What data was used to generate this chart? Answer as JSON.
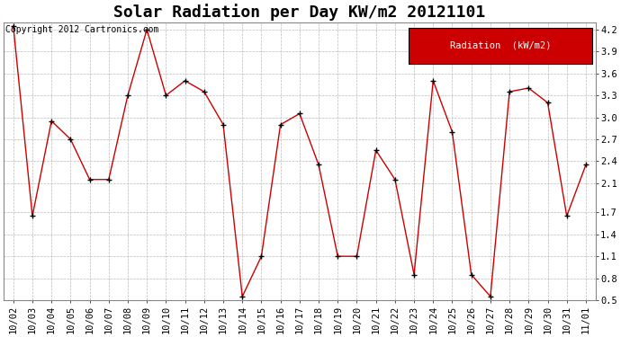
{
  "title": "Solar Radiation per Day KW/m2 20121101",
  "copyright_text": "Copyright 2012 Cartronics.com",
  "legend_label": "Radiation  (kW/m2)",
  "x_labels": [
    "10/02",
    "10/03",
    "10/04",
    "10/05",
    "10/06",
    "10/07",
    "10/08",
    "10/09",
    "10/10",
    "10/11",
    "10/12",
    "10/13",
    "10/14",
    "10/15",
    "10/16",
    "10/17",
    "10/18",
    "10/19",
    "10/20",
    "10/21",
    "10/22",
    "10/23",
    "10/24",
    "10/25",
    "10/26",
    "10/27",
    "10/28",
    "10/29",
    "10/30",
    "10/31",
    "11/01"
  ],
  "y_values": [
    4.25,
    1.65,
    2.95,
    2.7,
    2.15,
    2.15,
    3.3,
    4.2,
    3.3,
    3.5,
    3.35,
    2.9,
    0.55,
    1.1,
    2.9,
    3.05,
    2.35,
    1.1,
    1.1,
    2.55,
    2.15,
    0.85,
    3.5,
    2.8,
    0.85,
    0.55,
    3.35,
    3.4,
    3.2,
    1.65,
    2.35
  ],
  "line_color": "#cc0000",
  "marker_color": "#000000",
  "background_color": "#ffffff",
  "plot_bg_color": "#ffffff",
  "grid_color": "#bbbbbb",
  "ylim": [
    0.5,
    4.3
  ],
  "yticks": [
    0.5,
    0.8,
    1.1,
    1.4,
    1.7,
    2.1,
    2.4,
    2.7,
    3.0,
    3.3,
    3.6,
    3.9,
    4.2
  ],
  "legend_bg": "#cc0000",
  "legend_text_color": "#ffffff",
  "title_fontsize": 13,
  "tick_fontsize": 7.5,
  "copyright_fontsize": 7
}
